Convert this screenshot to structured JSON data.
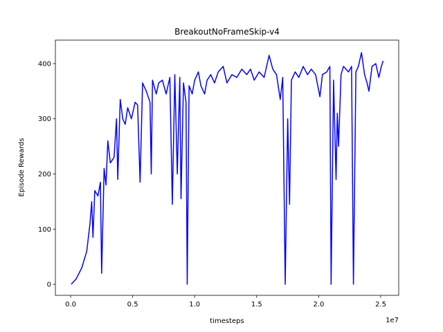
{
  "chart_data": {
    "type": "line",
    "title": "BreakoutNoFrameSkip-v4",
    "x_label": "timesteps",
    "y_label": "Episode Rewards",
    "x_offset_label": "1e7",
    "xlim": [
      -0.123,
      2.645
    ],
    "ylim": [
      -20,
      442.6
    ],
    "xticks": [
      {
        "value": 0,
        "label": "0.0"
      },
      {
        "value": 0.5,
        "label": "0.5"
      },
      {
        "value": 1,
        "label": "1.0"
      },
      {
        "value": 1.5,
        "label": "1.5"
      },
      {
        "value": 2,
        "label": "2.0"
      },
      {
        "value": 2.5,
        "label": "2.5"
      }
    ],
    "yticks": [
      0,
      100,
      200,
      300,
      400
    ],
    "grid": false,
    "x": [
      0.005,
      0.045,
      0.09,
      0.13,
      0.156,
      0.17,
      0.18,
      0.195,
      0.22,
      0.24,
      0.25,
      0.27,
      0.285,
      0.3,
      0.32,
      0.35,
      0.37,
      0.38,
      0.4,
      0.42,
      0.44,
      0.46,
      0.49,
      0.52,
      0.54,
      0.56,
      0.58,
      0.61,
      0.64,
      0.65,
      0.66,
      0.69,
      0.71,
      0.74,
      0.77,
      0.8,
      0.82,
      0.84,
      0.86,
      0.88,
      0.89,
      0.91,
      0.93,
      0.94,
      0.955,
      0.98,
      1.0,
      1.03,
      1.05,
      1.08,
      1.1,
      1.13,
      1.16,
      1.19,
      1.23,
      1.26,
      1.3,
      1.34,
      1.38,
      1.42,
      1.45,
      1.48,
      1.52,
      1.56,
      1.6,
      1.63,
      1.66,
      1.69,
      1.71,
      1.73,
      1.75,
      1.765,
      1.78,
      1.81,
      1.84,
      1.875,
      1.91,
      1.94,
      1.975,
      2.01,
      2.03,
      2.065,
      2.09,
      2.1,
      2.12,
      2.14,
      2.15,
      2.16,
      2.18,
      2.2,
      2.24,
      2.265,
      2.28,
      2.3,
      2.32,
      2.345,
      2.37,
      2.39,
      2.405,
      2.43,
      2.46,
      2.485,
      2.505,
      2.52
    ],
    "series": [
      {
        "name": "Episode Rewards",
        "color": "#0000ff",
        "values": [
          0,
          10,
          30,
          60,
          110,
          150,
          85,
          170,
          160,
          185,
          20,
          210,
          180,
          260,
          220,
          230,
          300,
          190,
          335,
          300,
          290,
          320,
          300,
          330,
          325,
          185,
          365,
          350,
          330,
          200,
          370,
          345,
          365,
          370,
          345,
          375,
          145,
          380,
          200,
          375,
          155,
          365,
          330,
          0,
          360,
          345,
          370,
          385,
          360,
          345,
          370,
          380,
          365,
          385,
          395,
          365,
          380,
          375,
          390,
          380,
          390,
          370,
          385,
          375,
          415,
          390,
          380,
          335,
          375,
          0,
          300,
          145,
          370,
          385,
          375,
          395,
          380,
          390,
          380,
          340,
          380,
          385,
          395,
          0,
          370,
          190,
          310,
          250,
          380,
          395,
          385,
          395,
          0,
          385,
          395,
          420,
          380,
          365,
          350,
          395,
          400,
          375,
          395,
          405
        ]
      }
    ]
  }
}
